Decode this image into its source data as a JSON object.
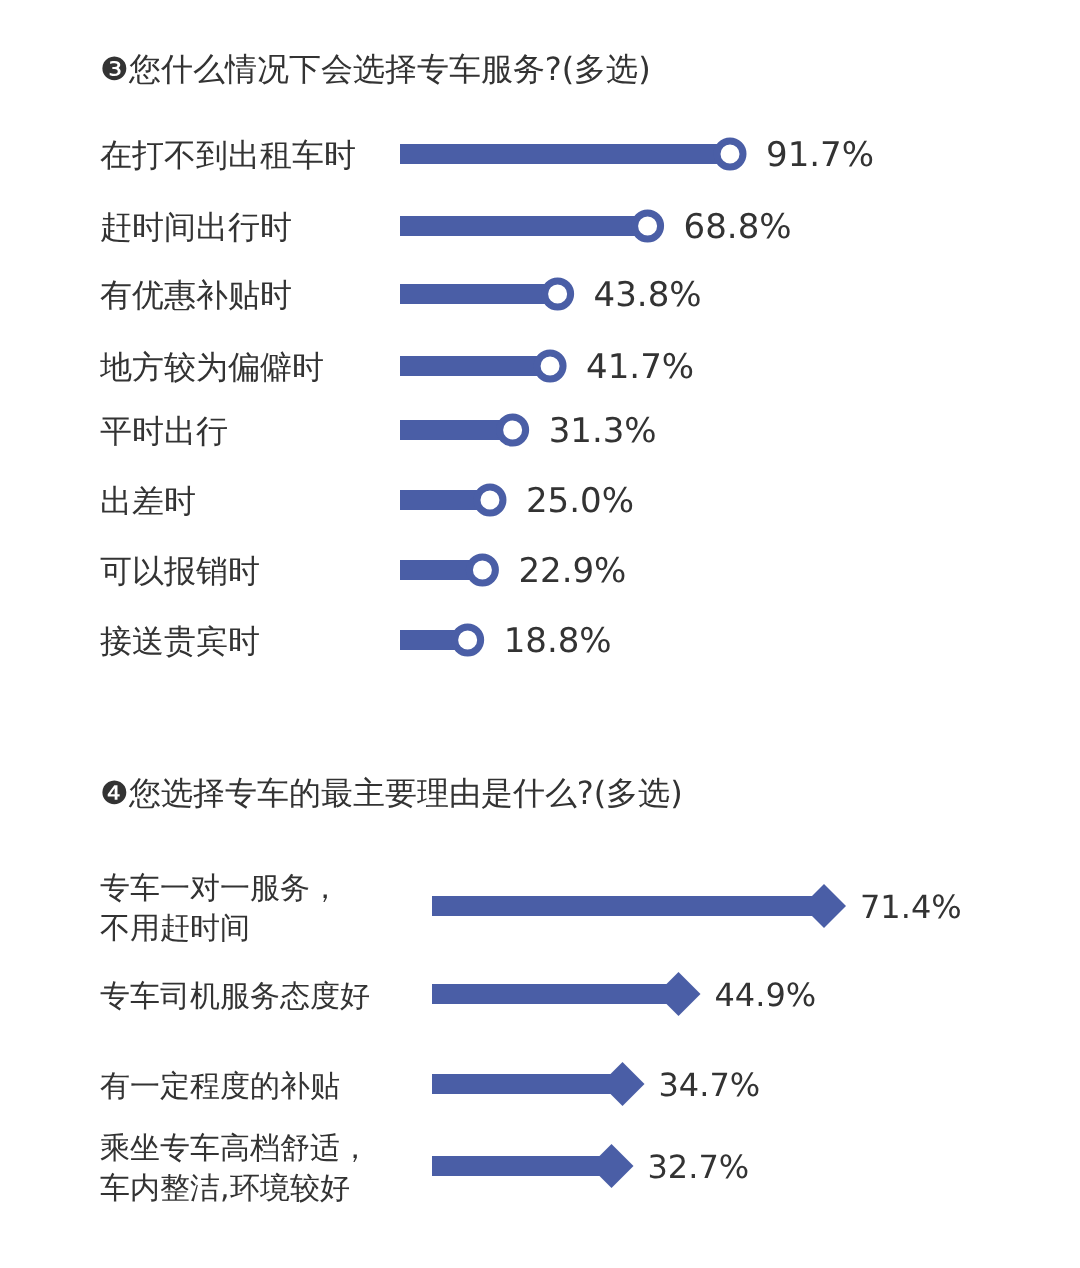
{
  "chart_data": [
    {
      "type": "lollipop",
      "orientation": "horizontal",
      "title": "❸您什么情况下会选择专车服务?(多选)",
      "categories": [
        "在打不到出租车时",
        "赶时间出行时",
        "有优惠补贴时",
        "地方较为偏僻时",
        "平时出行",
        "出差时",
        "可以报销时",
        "接送贵宾时"
      ],
      "values": [
        91.7,
        68.8,
        43.8,
        41.7,
        31.3,
        25.0,
        22.9,
        18.8
      ],
      "value_labels": [
        "91.7%",
        "68.8%",
        "43.8%",
        "41.7%",
        "31.3%",
        "25.0%",
        "22.9%",
        "18.8%"
      ],
      "color": "#4a5ea6",
      "marker": "circle"
    },
    {
      "type": "lollipop",
      "orientation": "horizontal",
      "title": "❹您选择专车的最主要理由是什么?(多选)",
      "categories": [
        "专车一对一服务，不用赶时间",
        "专车司机服务态度好",
        "有一定程度的补贴",
        "乘坐专车高档舒适，车内整洁,环境较好"
      ],
      "values": [
        71.4,
        44.9,
        34.7,
        32.7
      ],
      "value_labels": [
        "71.4%",
        "44.9%",
        "34.7%",
        "32.7%"
      ],
      "color": "#4a5ea6",
      "marker": "diamond"
    }
  ]
}
